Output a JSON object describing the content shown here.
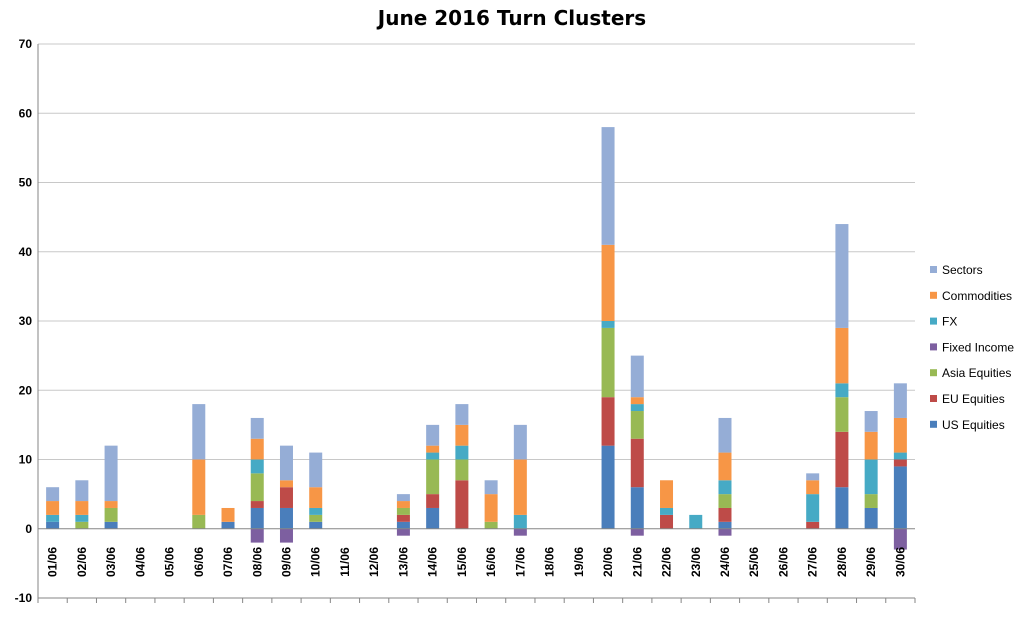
{
  "chart_data": {
    "type": "bar",
    "stacked": true,
    "title": "June 2016 Turn Clusters",
    "xlabel": "",
    "ylabel": "",
    "ylim": [
      -10,
      70
    ],
    "yticks": [
      -10,
      0,
      10,
      20,
      30,
      40,
      50,
      60,
      70
    ],
    "grid": true,
    "legend_position": "right",
    "categories": [
      "01/06",
      "02/06",
      "03/06",
      "04/06",
      "05/06",
      "06/06",
      "07/06",
      "08/06",
      "09/06",
      "10/06",
      "11/06",
      "12/06",
      "13/06",
      "14/06",
      "15/06",
      "16/06",
      "17/06",
      "18/06",
      "19/06",
      "20/06",
      "21/06",
      "22/06",
      "23/06",
      "24/06",
      "25/06",
      "26/06",
      "27/06",
      "28/06",
      "29/06",
      "30/06"
    ],
    "series": [
      {
        "name": "US Equities",
        "color": "#4a7ebb",
        "values": [
          1,
          0,
          1,
          0,
          0,
          0,
          1,
          3,
          3,
          1,
          0,
          0,
          1,
          3,
          0,
          0,
          0,
          0,
          0,
          12,
          6,
          0,
          0,
          1,
          0,
          0,
          0,
          6,
          3,
          9
        ]
      },
      {
        "name": "EU Equities",
        "color": "#be4b48",
        "values": [
          0,
          0,
          0,
          0,
          0,
          0,
          0,
          1,
          3,
          0,
          0,
          0,
          1,
          2,
          7,
          0,
          0,
          0,
          0,
          7,
          7,
          2,
          0,
          2,
          0,
          0,
          1,
          8,
          0,
          1
        ]
      },
      {
        "name": "Asia Equities",
        "color": "#98b954",
        "values": [
          0,
          1,
          2,
          0,
          0,
          2,
          0,
          4,
          0,
          1,
          0,
          0,
          1,
          5,
          3,
          1,
          0,
          0,
          0,
          10,
          4,
          0,
          0,
          2,
          0,
          0,
          0,
          5,
          2,
          0
        ]
      },
      {
        "name": "Fixed Income",
        "color": "#7d5fa0",
        "values": [
          0,
          0,
          0,
          0,
          0,
          0,
          0,
          -2,
          -2,
          0,
          0,
          0,
          -1,
          0,
          0,
          0,
          -1,
          0,
          0,
          0,
          -1,
          0,
          0,
          -1,
          0,
          0,
          0,
          0,
          0,
          -3
        ]
      },
      {
        "name": "FX",
        "color": "#46aac5",
        "values": [
          1,
          1,
          0,
          0,
          0,
          0,
          0,
          2,
          0,
          1,
          0,
          0,
          0,
          1,
          2,
          0,
          2,
          0,
          0,
          1,
          1,
          1,
          2,
          2,
          0,
          0,
          4,
          2,
          5,
          1
        ]
      },
      {
        "name": "Commodities",
        "color": "#f79646",
        "values": [
          2,
          2,
          1,
          0,
          0,
          8,
          2,
          3,
          1,
          3,
          0,
          0,
          1,
          1,
          3,
          4,
          8,
          0,
          0,
          11,
          1,
          4,
          0,
          4,
          0,
          0,
          2,
          8,
          4,
          5
        ]
      },
      {
        "name": "Sectors",
        "color": "#95add6",
        "values": [
          2,
          3,
          8,
          0,
          0,
          8,
          0,
          3,
          5,
          5,
          0,
          0,
          1,
          3,
          3,
          2,
          5,
          0,
          0,
          17,
          6,
          0,
          0,
          5,
          0,
          0,
          1,
          15,
          3,
          5
        ]
      }
    ]
  }
}
